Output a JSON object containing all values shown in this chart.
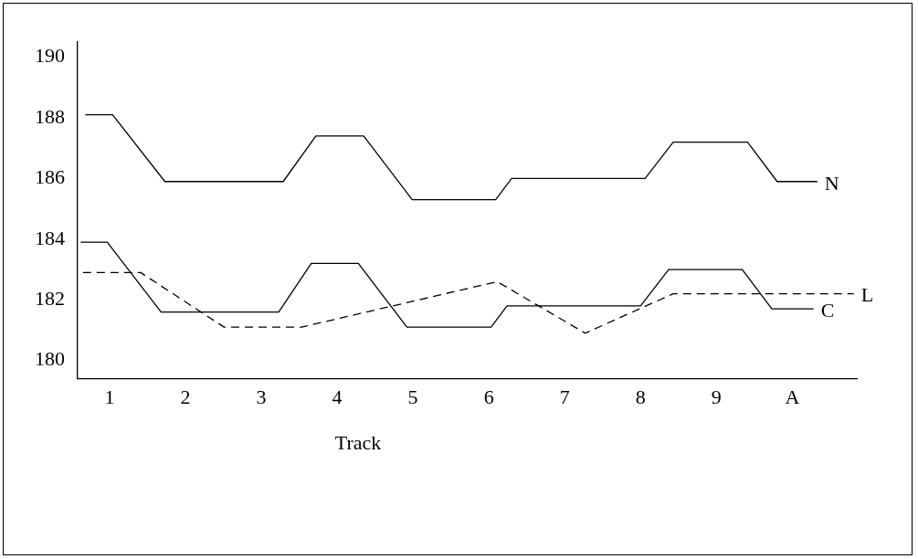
{
  "chart_data": {
    "type": "line",
    "xlabel": "Track",
    "xlim": [
      0.58,
      10.85
    ],
    "xticks": [
      1,
      2,
      3,
      4,
      5,
      6,
      7,
      8,
      9,
      {
        "value": 10,
        "label": "A"
      }
    ],
    "ylim": [
      179.4,
      190.5
    ],
    "yticks": [
      180,
      182,
      184,
      186,
      188,
      190
    ],
    "grid": false,
    "legend": false,
    "marker": "none",
    "series": [
      {
        "name": "N",
        "color": "#000000",
        "line_style": "solid",
        "x": [
          0.68,
          1.04,
          1.73,
          3.29,
          3.72,
          4.35,
          4.99,
          6.09,
          6.3,
          8.06,
          8.43,
          9.41,
          9.8,
          10.33
        ],
        "values": [
          188.1,
          188.1,
          185.9,
          185.9,
          187.4,
          187.4,
          185.3,
          185.3,
          186.0,
          186.0,
          187.2,
          187.2,
          185.9,
          185.9
        ]
      },
      {
        "name": "C",
        "color": "#000000",
        "line_style": "solid",
        "x": [
          0.62,
          0.97,
          1.68,
          3.23,
          3.66,
          4.28,
          4.92,
          6.03,
          6.24,
          8.0,
          8.37,
          9.34,
          9.73,
          10.28
        ],
        "values": [
          183.9,
          183.9,
          181.6,
          181.6,
          183.2,
          183.2,
          181.1,
          181.1,
          181.8,
          181.8,
          183.0,
          183.0,
          181.7,
          181.7
        ]
      },
      {
        "name": "L",
        "color": "#000000",
        "line_style": "dashed",
        "x": [
          0.65,
          1.41,
          2.51,
          3.53,
          6.11,
          7.27,
          8.43,
          10.81
        ],
        "values": [
          182.9,
          182.9,
          181.1,
          181.1,
          182.6,
          180.9,
          182.2,
          182.2
        ]
      }
    ]
  }
}
